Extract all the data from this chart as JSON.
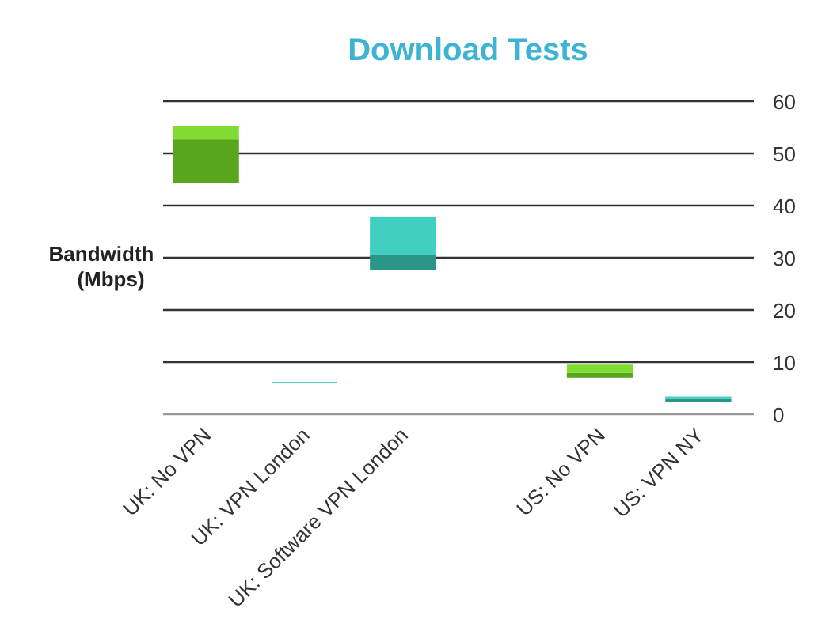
{
  "chart_data": {
    "type": "bar",
    "title": "Download Tests",
    "ylabel": "Bandwidth\n(Mbps)",
    "categories": [
      "UK: No VPN",
      "UK: VPN London",
      "UK: Software VPN London",
      null,
      "US: No VPN",
      "US: VPN NY"
    ],
    "series": [
      {
        "colors": [
          "#5aa51e",
          null,
          "#2a9688",
          null,
          "#5aa51e",
          "#2a9688"
        ],
        "base": [
          44.3,
          null,
          27.6,
          null,
          7,
          2.4
        ],
        "values": [
          8.4,
          null,
          3,
          null,
          0.9,
          0.5
        ]
      },
      {
        "colors": [
          "#80dc32",
          "#40cfc0",
          "#40cfc0",
          null,
          "#80dc32",
          "#40cfc0"
        ],
        "base": [
          52.7,
          6,
          30.6,
          null,
          7.9,
          2.9
        ],
        "values": [
          2.5,
          0.2,
          7.3,
          null,
          1.6,
          0.5
        ]
      }
    ],
    "ylim": [
      0,
      60
    ],
    "yticks": [
      0,
      10,
      20,
      30,
      40,
      50,
      60
    ],
    "grid": "y"
  }
}
